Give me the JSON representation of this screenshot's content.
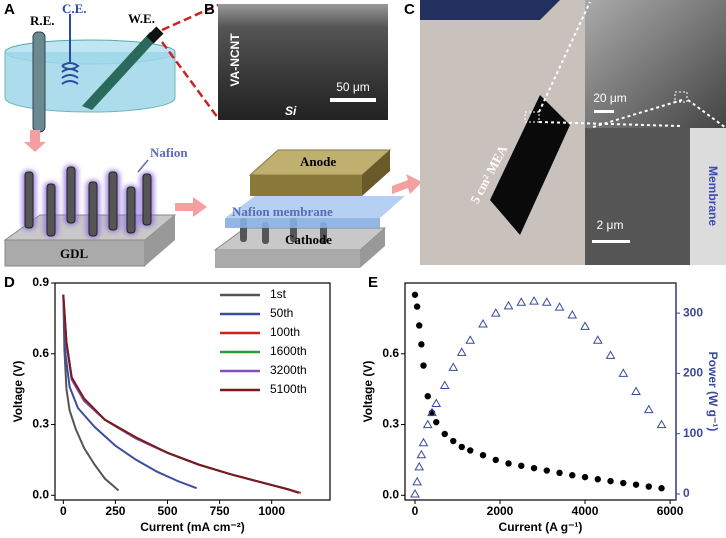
{
  "panels": [
    "A",
    "B",
    "C",
    "D",
    "E"
  ],
  "schematic": {
    "re": "R.E.",
    "ce": "C.E.",
    "we": "W.E.",
    "nafion": "Nafion",
    "gdl": "GDL",
    "anode": "Anode",
    "membrane": "Nafion membrane",
    "cathode": "Cathode"
  },
  "sem": {
    "film": "VA-NCNT",
    "substrate": "Si",
    "scale": "50 μm"
  },
  "photo": {
    "mea": "5 cm² MEA",
    "scale_top": "20 μm",
    "scale_bottom": "2 μm",
    "membrane": "Membrane"
  },
  "chart_data": [
    {
      "type": "line",
      "xlabel": "Current (mA cm⁻²)",
      "ylabel": "Voltage (V)",
      "xlim": [
        -40,
        1280
      ],
      "xticks": [
        0,
        250,
        500,
        750,
        1000
      ],
      "ylim": [
        -0.02,
        0.9
      ],
      "yticks": [
        {
          "value": 0,
          "label": "0.0"
        },
        0.3,
        0.6,
        0.9
      ],
      "legend": "upper right",
      "series": [
        {
          "name": "1st",
          "color": "#555555",
          "x": [
            0,
            5,
            15,
            30,
            60,
            100,
            150,
            200,
            240,
            265
          ],
          "values": [
            0.85,
            0.62,
            0.45,
            0.36,
            0.28,
            0.2,
            0.13,
            0.07,
            0.04,
            0.02
          ]
        },
        {
          "name": "50th",
          "color": "#3b4da0",
          "x": [
            0,
            10,
            30,
            70,
            150,
            250,
            350,
            450,
            550,
            640
          ],
          "values": [
            0.85,
            0.6,
            0.46,
            0.37,
            0.29,
            0.21,
            0.15,
            0.1,
            0.06,
            0.03
          ]
        },
        {
          "name": "100th",
          "color": "#d02020",
          "x": [
            0,
            15,
            40,
            100,
            200,
            350,
            500,
            650,
            800,
            950,
            1080,
            1140
          ],
          "values": [
            0.85,
            0.65,
            0.5,
            0.4,
            0.32,
            0.24,
            0.18,
            0.13,
            0.09,
            0.055,
            0.025,
            0.01
          ]
        },
        {
          "name": "1600th",
          "color": "#2a9a3a",
          "x": [
            0,
            15,
            40,
            100,
            200,
            350,
            500,
            650,
            800,
            950,
            1080,
            1130
          ],
          "values": [
            0.84,
            0.64,
            0.5,
            0.4,
            0.32,
            0.24,
            0.18,
            0.13,
            0.09,
            0.055,
            0.025,
            0.012
          ]
        },
        {
          "name": "3200th",
          "color": "#8a4cb8",
          "x": [
            0,
            15,
            40,
            100,
            200,
            350,
            500,
            650,
            800,
            950,
            1080,
            1120
          ],
          "values": [
            0.83,
            0.64,
            0.49,
            0.4,
            0.32,
            0.24,
            0.18,
            0.13,
            0.09,
            0.055,
            0.025,
            0.014
          ]
        },
        {
          "name": "5100th",
          "color": "#7a1a1a",
          "x": [
            0,
            15,
            40,
            100,
            200,
            350,
            500,
            650,
            800,
            950,
            1080,
            1130
          ],
          "values": [
            0.85,
            0.65,
            0.5,
            0.41,
            0.32,
            0.245,
            0.18,
            0.13,
            0.09,
            0.055,
            0.025,
            0.01
          ]
        }
      ]
    },
    {
      "type": "scatter",
      "xlabel": "Current (A g⁻¹)",
      "ylabel": "Voltage (V)",
      "y2label": "Power (W g⁻¹)",
      "xlim": [
        -235,
        6140
      ],
      "xticks": [
        0,
        2000,
        4000,
        6000
      ],
      "ylim": [
        -0.02,
        0.9
      ],
      "yticks": [
        {
          "value": 0,
          "label": "0.0"
        },
        0.3,
        0.6
      ],
      "y2lim": [
        -10,
        350
      ],
      "y2ticks": [
        0,
        100,
        200,
        300
      ],
      "y2color": "#3a4a9a",
      "x": [
        0,
        50,
        100,
        150,
        200,
        300,
        400,
        500,
        700,
        900,
        1100,
        1300,
        1600,
        1900,
        2200,
        2500,
        2800,
        3100,
        3400,
        3700,
        4000,
        4300,
        4600,
        4900,
        5200,
        5500,
        5800
      ],
      "series": [
        {
          "marker": "circle",
          "color": "#000000",
          "values": [
            0.85,
            0.8,
            0.72,
            0.64,
            0.55,
            0.42,
            0.35,
            0.31,
            0.26,
            0.23,
            0.205,
            0.19,
            0.17,
            0.15,
            0.135,
            0.125,
            0.115,
            0.105,
            0.095,
            0.085,
            0.077,
            0.068,
            0.06,
            0.052,
            0.045,
            0.037,
            0.03
          ]
        },
        {
          "marker": "triangle",
          "color": "#3a4a9a",
          "axis": "y2",
          "values": [
            0,
            20,
            45,
            65,
            85,
            115,
            135,
            150,
            180,
            210,
            235,
            255,
            282,
            300,
            312,
            318,
            320,
            318,
            310,
            297,
            278,
            255,
            230,
            200,
            170,
            140,
            115
          ]
        }
      ]
    }
  ]
}
